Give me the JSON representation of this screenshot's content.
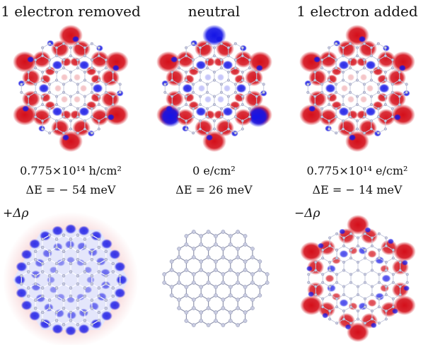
{
  "columns": [
    {
      "title": "1 electron removed",
      "density_text": "0.775×10¹⁴ h/cm²",
      "energy_text": "ΔE = − 54 meV",
      "map_kind": "removed"
    },
    {
      "title": "neutral",
      "density_text": "0 e/cm²",
      "energy_text": "ΔE = 26 meV",
      "map_kind": "neutral"
    },
    {
      "title": "1 electron added",
      "density_text": "0.775×10¹⁴ e/cm²",
      "energy_text": "ΔE = − 14 meV",
      "map_kind": "added"
    }
  ],
  "bottom_row": {
    "left_label": "+Δρ",
    "right_label": "−Δρ"
  },
  "colors": {
    "positive": "#d40f1a",
    "negative": "#1414e6",
    "lattice": "#a9adc4",
    "atom": "#c8cbe0"
  }
}
